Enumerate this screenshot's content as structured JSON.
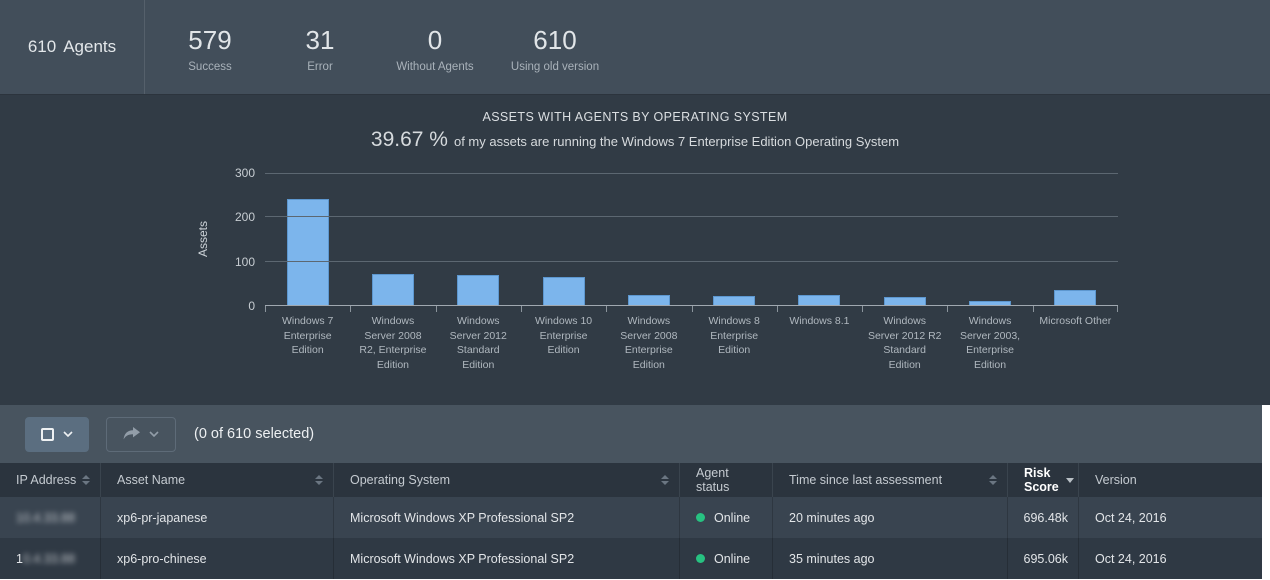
{
  "topbar": {
    "agents_count": "610",
    "agents_label": "Agents",
    "stats": [
      {
        "value": "579",
        "label": "Success"
      },
      {
        "value": "31",
        "label": "Error"
      },
      {
        "value": "0",
        "label": "Without Agents"
      },
      {
        "value": "610",
        "label": "Using old version"
      }
    ]
  },
  "chart": {
    "title": "ASSETS WITH AGENTS BY OPERATING SYSTEM",
    "subtitle_value": "39.67 %",
    "subtitle_text": "of my assets are running the Windows 7 Enterprise Edition Operating System",
    "ylabel": "Assets"
  },
  "chart_data": {
    "type": "bar",
    "title": "ASSETS WITH AGENTS BY OPERATING SYSTEM",
    "subtitle": "39.67 % of my assets are running the Windows 7 Enterprise Edition Operating System",
    "ylabel": "Assets",
    "ylim": [
      0,
      300
    ],
    "yticks": [
      0,
      100,
      200,
      300
    ],
    "grid": true,
    "legend": "none",
    "bar_color": "#7cb5ec",
    "categories": [
      "Windows 7 Enterprise Edition",
      "Windows Server 2008 R2, Enterprise Edition",
      "Windows Server 2012 Standard Edition",
      "Windows 10 Enterprise Edition",
      "Windows Server 2008 Enterprise Edition",
      "Windows 8 Enterprise Edition",
      "Windows 8.1",
      "Windows Server 2012 R2 Standard Edition",
      "Windows Server 2003, Enterprise Edition",
      "Microsoft Other"
    ],
    "values": [
      242,
      72,
      70,
      66,
      25,
      22,
      25,
      21,
      12,
      35
    ]
  },
  "toolbar": {
    "selected_text": "(0 of 610 selected)"
  },
  "table": {
    "columns": [
      {
        "label": "IP Address",
        "sortable": true
      },
      {
        "label": "Asset Name",
        "sortable": true
      },
      {
        "label": "Operating System",
        "sortable": true
      },
      {
        "label": "Agent status",
        "sortable": false
      },
      {
        "label": "Time since last assessment",
        "sortable": true
      },
      {
        "label": "Risk Score",
        "sorted": "desc"
      },
      {
        "label": "Version",
        "sortable": false
      }
    ],
    "rows": [
      {
        "ip_prefix": "",
        "ip_blurred": "10.4.33.88",
        "asset_name": "xp6-pr-japanese",
        "os": "Microsoft Windows XP Professional SP2",
        "agent_status": "Online",
        "time_since": "20 minutes ago",
        "risk_score": "696.48k",
        "version": "Oct 24, 2016"
      },
      {
        "ip_prefix": "1",
        "ip_blurred": "0.4.33.88",
        "asset_name": "xp6-pro-chinese",
        "os": "Microsoft Windows XP Professional SP2",
        "agent_status": "Online",
        "time_since": "35 minutes ago",
        "risk_score": "695.06k",
        "version": "Oct 24, 2016"
      }
    ]
  },
  "colors": {
    "bar": "#7cb5ec",
    "status_online": "#27c281",
    "topbar_bg": "#424e5a",
    "chart_bg": "#313b45",
    "header_bg": "#2b343e"
  }
}
